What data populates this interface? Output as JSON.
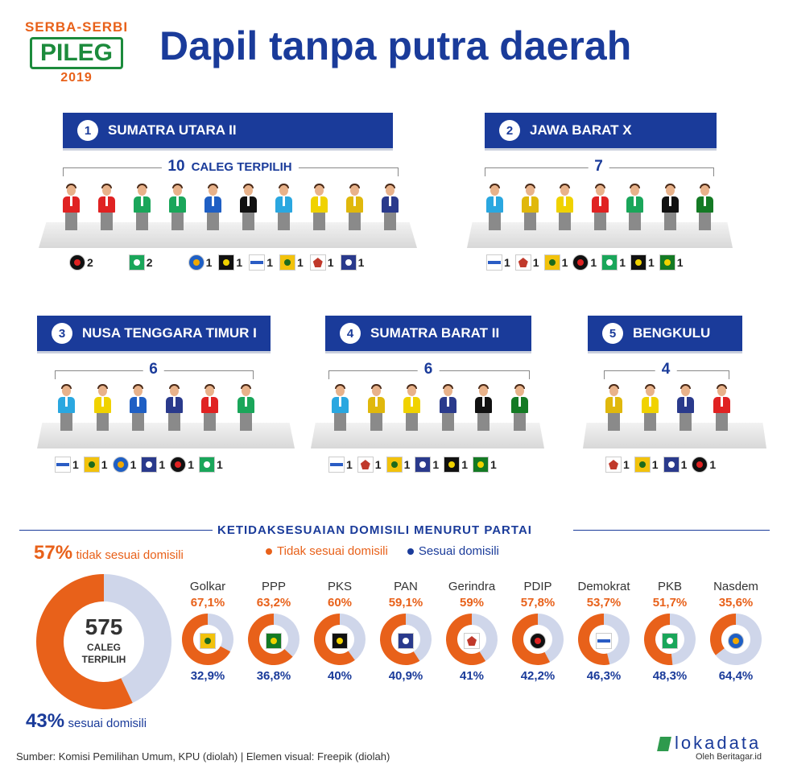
{
  "header": {
    "logo_line1": "SERBA-SERBI",
    "logo_line2": "PILEG",
    "logo_line3": "2019",
    "title": "Dapil tanpa putra daerah"
  },
  "colors": {
    "navy": "#1a3b9a",
    "orange": "#e8611a",
    "light_blue_gray": "#cfd6ea",
    "golkar": "#f2c20c",
    "pdip": "#e02222",
    "pkb": "#1aa65a",
    "nasdem": "#1f5fc4",
    "pks": "#111111",
    "demokrat": "#2aa7e0",
    "gerindra": "#e0b80c",
    "pan": "#2a3a8c",
    "ppp": "#147a24",
    "hanura": "#f0d200"
  },
  "regions": [
    {
      "num": "1",
      "name": "SUMATRA UTARA II",
      "count": "10",
      "count_suffix": "CALEG TERPILIH",
      "people": [
        "pdip",
        "pdip",
        "pkb",
        "pkb",
        "nasdem",
        "pks",
        "demokrat",
        "hanura",
        "gerindra",
        "pan"
      ],
      "parties": [
        {
          "icon": "pdip-icon",
          "count": "2"
        },
        {
          "icon": "pkb-icon",
          "count": "2"
        },
        {
          "icon": "nasdem-icon",
          "count": "1"
        },
        {
          "icon": "pks-icon",
          "count": "1"
        },
        {
          "icon": "demokrat-icon",
          "count": "1"
        },
        {
          "icon": "golkar-icon",
          "count": "1"
        },
        {
          "icon": "gerindra-icon",
          "count": "1"
        },
        {
          "icon": "pan-icon",
          "count": "1"
        }
      ]
    },
    {
      "num": "2",
      "name": "JAWA BARAT X",
      "count": "7",
      "count_suffix": "",
      "people": [
        "demokrat",
        "gerindra",
        "hanura",
        "pdip",
        "pkb",
        "pks",
        "ppp"
      ],
      "parties": [
        {
          "icon": "demokrat-icon",
          "count": "1"
        },
        {
          "icon": "gerindra-icon",
          "count": "1"
        },
        {
          "icon": "golkar-icon",
          "count": "1"
        },
        {
          "icon": "pdip-icon",
          "count": "1"
        },
        {
          "icon": "pkb-icon",
          "count": "1"
        },
        {
          "icon": "pks-icon",
          "count": "1"
        },
        {
          "icon": "ppp-icon",
          "count": "1"
        }
      ]
    },
    {
      "num": "3",
      "name": "NUSA TENGGARA TIMUR I",
      "count": "6",
      "count_suffix": "",
      "people": [
        "demokrat",
        "hanura",
        "nasdem",
        "pan",
        "pdip",
        "pkb"
      ],
      "parties": [
        {
          "icon": "demokrat-icon",
          "count": "1"
        },
        {
          "icon": "golkar-icon",
          "count": "1"
        },
        {
          "icon": "nasdem-icon",
          "count": "1"
        },
        {
          "icon": "pan-icon",
          "count": "1"
        },
        {
          "icon": "pdip-icon",
          "count": "1"
        },
        {
          "icon": "pkb-icon",
          "count": "1"
        }
      ]
    },
    {
      "num": "4",
      "name": "SUMATRA BARAT II",
      "count": "6",
      "count_suffix": "",
      "people": [
        "demokrat",
        "gerindra",
        "hanura",
        "pan",
        "pks",
        "ppp"
      ],
      "parties": [
        {
          "icon": "demokrat-icon",
          "count": "1"
        },
        {
          "icon": "gerindra-icon",
          "count": "1"
        },
        {
          "icon": "golkar-icon",
          "count": "1"
        },
        {
          "icon": "pan-icon",
          "count": "1"
        },
        {
          "icon": "pks-icon",
          "count": "1"
        },
        {
          "icon": "ppp-icon",
          "count": "1"
        }
      ]
    },
    {
      "num": "5",
      "name": "BENGKULU",
      "count": "4",
      "count_suffix": "",
      "people": [
        "gerindra",
        "hanura",
        "pan",
        "pdip"
      ],
      "parties": [
        {
          "icon": "gerindra-icon",
          "count": "1"
        },
        {
          "icon": "golkar-icon",
          "count": "1"
        },
        {
          "icon": "pan-icon",
          "count": "1"
        },
        {
          "icon": "pdip-icon",
          "count": "1"
        }
      ]
    }
  ],
  "section": {
    "title": "KETIDAKSESUAIAN DOMISILI MENURUT PARTAI",
    "legend_not": "Tidak sesuai domisili",
    "legend_yes": "Sesuai domisili"
  },
  "overall": {
    "not_pct": "57%",
    "not_label": "tidak sesuai domisili",
    "yes_pct": "43%",
    "yes_label": "sesuai domisili",
    "total": "575",
    "total_label1": "CALEG",
    "total_label2": "TERPILIH"
  },
  "chart_data": {
    "type": "pie",
    "title": "KETIDAKSESUAIAN DOMISILI MENURUT PARTAI",
    "series": [
      {
        "name": "Tidak sesuai domisili",
        "values": [
          67.1,
          63.2,
          60,
          59.1,
          59,
          57.8,
          53.7,
          51.7,
          35.6
        ]
      },
      {
        "name": "Sesuai domisili",
        "values": [
          32.9,
          36.8,
          40,
          40.9,
          41,
          42.2,
          46.3,
          48.3,
          64.4
        ]
      }
    ],
    "categories": [
      "Golkar",
      "PPP",
      "PKS",
      "PAN",
      "Gerindra",
      "PDIP",
      "Demokrat",
      "PKB",
      "Nasdem"
    ],
    "labels_top": [
      "67,1%",
      "63,2%",
      "60%",
      "59,1%",
      "59%",
      "57,8%",
      "53,7%",
      "51,7%",
      "35,6%"
    ],
    "labels_bottom": [
      "32,9%",
      "36,8%",
      "40%",
      "40,9%",
      "41%",
      "42,2%",
      "46,3%",
      "48,3%",
      "64,4%"
    ],
    "icons": [
      "golkar-icon",
      "ppp-icon",
      "pks-icon",
      "pan-icon",
      "gerindra-icon",
      "pdip-icon",
      "demokrat-icon",
      "pkb-icon",
      "nasdem-icon"
    ],
    "overall": {
      "not_pct": 57,
      "yes_pct": 43,
      "total": 575
    }
  },
  "footer": {
    "source": "Sumber: Komisi Pemilihan Umum, KPU (diolah) | Elemen visual: Freepik (diolah)",
    "brand": "lokadata",
    "brand_sub": "Oleh Beritagar.id"
  }
}
